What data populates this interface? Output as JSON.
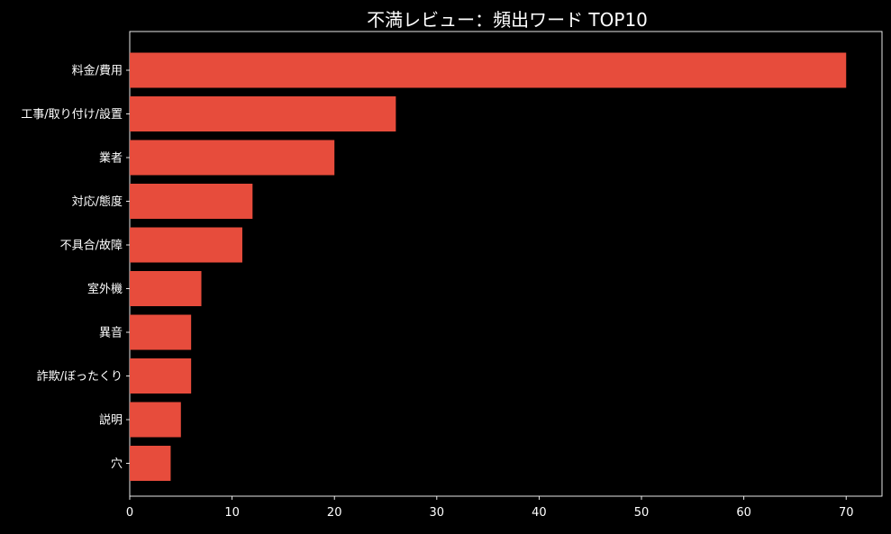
{
  "chart_data": {
    "type": "bar",
    "orientation": "horizontal",
    "title": "不満レビュー：頻出ワード TOP10",
    "xlabel": "",
    "ylabel": "",
    "categories": [
      "料金/費用",
      "工事/取り付け/設置",
      "業者",
      "対応/態度",
      "不具合/故障",
      "室外機",
      "異音",
      "詐欺/ぼったくり",
      "説明",
      "穴"
    ],
    "values": [
      70,
      26,
      20,
      12,
      11,
      7,
      6,
      6,
      5,
      4
    ],
    "xlim": [
      0,
      73.5
    ],
    "xticks": [
      0,
      10,
      20,
      30,
      40,
      50,
      60,
      70
    ],
    "grid": false,
    "legend": "none",
    "colors": {
      "bar": "#E74C3C",
      "background": "#000000",
      "text": "#FFFFFF",
      "axis": "#FFFFFF"
    }
  }
}
